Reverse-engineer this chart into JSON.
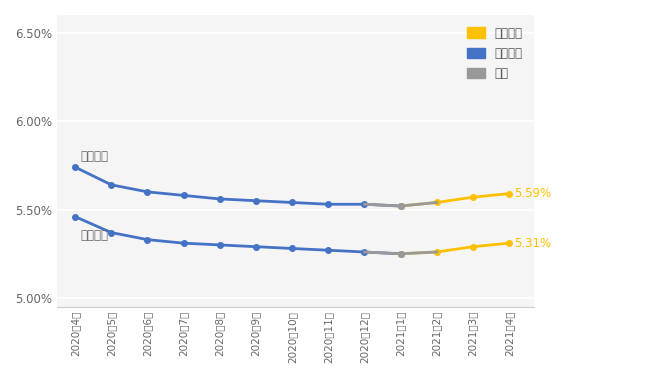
{
  "x_labels": [
    "2020年4月",
    "2020年5月",
    "2020年6月",
    "2020年7月",
    "2020年8月",
    "2020年9月",
    "2020年10月",
    "2020年11月",
    "2020年12月",
    "2021年1月",
    "2021年2月",
    "2021年3月",
    "2021年4月"
  ],
  "line1_values": [
    5.74,
    5.64,
    5.6,
    5.58,
    5.56,
    5.55,
    5.54,
    5.53,
    5.53,
    5.52,
    5.54,
    5.57,
    5.59
  ],
  "line2_values": [
    5.46,
    5.37,
    5.33,
    5.31,
    5.3,
    5.29,
    5.28,
    5.27,
    5.26,
    5.25,
    5.26,
    5.29,
    5.31
  ],
  "transition_idx": 9,
  "blue_color": "#4472C4",
  "gold_color": "#FFC000",
  "gray_color": "#999999",
  "label1": "二套利率",
  "label2": "首套利率",
  "end_label1": "5.59%",
  "end_label2": "5.31%",
  "legend_up": "连续上升",
  "legend_down": "连续下降",
  "legend_other": "其他",
  "ylim_min": 4.95,
  "ylim_max": 6.6,
  "ytick_labels": [
    "5.00%",
    "5.50%",
    "6.00%",
    "6.50%"
  ],
  "ytick_vals": [
    5.0,
    5.5,
    6.0,
    6.5
  ],
  "bg_color": "#FFFFFF",
  "plot_bg": "#F5F5F5"
}
